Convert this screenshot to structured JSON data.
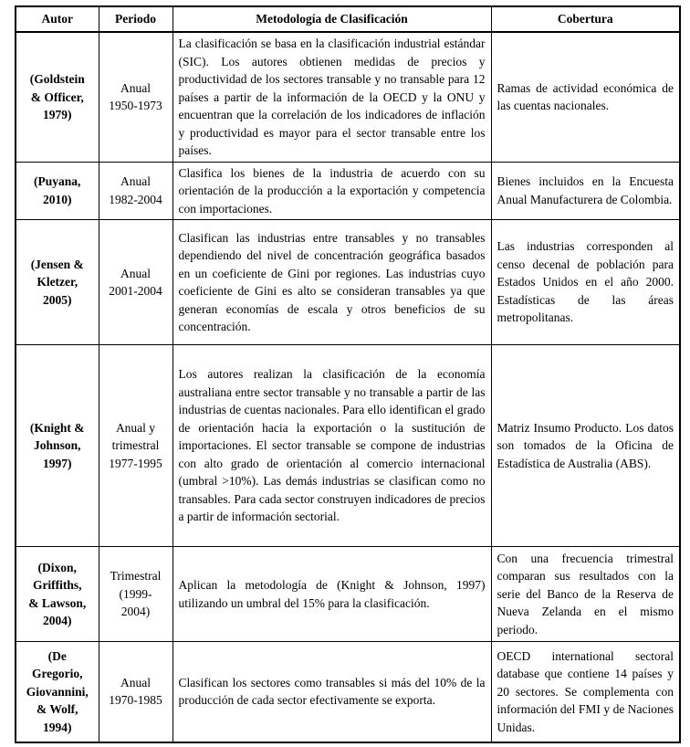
{
  "table": {
    "headers": [
      "Autor",
      "Periodo",
      "Metodología de Clasificación",
      "Cobertura"
    ],
    "rows": [
      {
        "autor": "(Goldstein\n& Officer,\n1979)",
        "periodo": "Anual\n1950-1973",
        "metodologia": "La clasificación se basa en la clasificación industrial estándar (SIC). Los autores obtienen medidas de precios y productividad de los sectores transable y no transable para 12 países a partir de la información de la OECD y la ONU y encuentran que la correlación de los indicadores de inflación y productividad es mayor para el sector transable entre los países.",
        "cobertura": "Ramas de actividad económica de las cuentas nacionales."
      },
      {
        "autor": "(Puyana,\n2010)",
        "periodo": "Anual\n1982-2004",
        "metodologia": "Clasifica los bienes de la industria de acuerdo con su orientación de la producción a la exportación y competencia con importaciones.",
        "cobertura": "Bienes incluidos en la Encuesta Anual Manufacturera de Colombia."
      },
      {
        "autor": "(Jensen &\nKletzer,\n2005)",
        "periodo": "Anual\n2001-2004",
        "metodologia": "Clasifican las industrias entre transables y no transables dependiendo del nivel de concentración geográfica basados en un coeficiente de Gini por regiones. Las industrias cuyo coeficiente de Gini es alto se consideran transables ya que generan economías de escala y otros beneficios de su concentración.",
        "cobertura": "Las industrias corresponden al censo decenal de población para Estados Unidos en el año 2000. Estadísticas de las áreas metropolitanas."
      },
      {
        "autor": "(Knight &\nJohnson,\n1997)",
        "periodo": "Anual y\ntrimestral\n1977-1995",
        "metodologia": "Los autores realizan la clasificación de la economía australiana entre sector transable y no transable a partir de las industrias de cuentas nacionales. Para ello identifican el grado de orientación hacia la exportación o la sustitución de importaciones. El sector transable se compone de industrias con alto grado de orientación al comercio internacional (umbral >10%). Las demás industrias se clasifican como no transables. Para cada sector construyen indicadores de precios a partir de información sectorial.",
        "cobertura": "Matriz Insumo Producto. Los datos son tomados de la Oficina de Estadística de Australia (ABS)."
      },
      {
        "autor": "(Dixon,\nGriffiths,\n& Lawson,\n2004)",
        "periodo": "Trimestral\n(1999-\n2004)",
        "metodologia": "Aplican la metodología de (Knight & Johnson, 1997) utilizando un umbral del 15% para la clasificación.",
        "cobertura": "Con una frecuencia trimestral comparan sus resultados con la serie del Banco de la Reserva de Nueva Zelanda en el mismo periodo."
      },
      {
        "autor": "(De\nGregorio,\nGiovannini,\n& Wolf,\n1994)",
        "periodo": "Anual\n1970-1985",
        "metodologia": "Clasifican los sectores como transables si más del 10% de la producción de cada sector efectivamente se exporta.",
        "cobertura": "OECD international sectoral database que contiene 14 países y 20 sectores. Se complementa con información del FMI y de Naciones Unidas."
      }
    ]
  }
}
